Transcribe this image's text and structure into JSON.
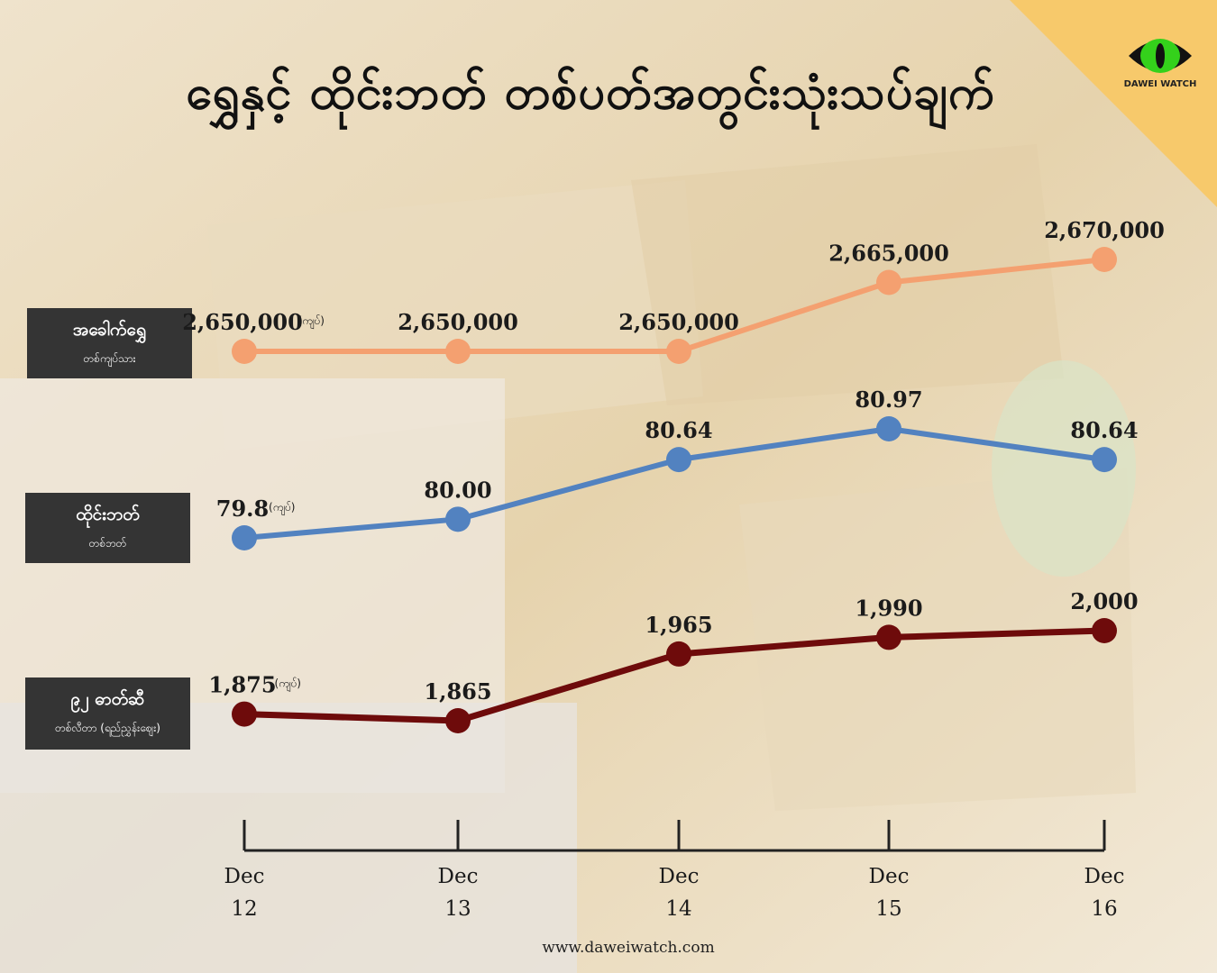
{
  "title": "ရွှေနှင့် ထိုင်းဘတ် တစ်ပတ်အတွင်းသုံးသပ်ချက်",
  "brand": "DAWEI WATCH",
  "website": "www.daweiwatch.com",
  "unit_label": "(ကျပ်)",
  "chart_data": {
    "type": "line",
    "x": [
      "Dec 12",
      "Dec 13",
      "Dec 14",
      "Dec 15",
      "Dec 16"
    ],
    "x_month": [
      "Dec",
      "Dec",
      "Dec",
      "Dec",
      "Dec"
    ],
    "x_day": [
      "12",
      "13",
      "14",
      "15",
      "16"
    ],
    "series": [
      {
        "name": "အခေါက်ရွှေ",
        "subtitle": "တစ်ကျပ်သား",
        "color": "#f4a070",
        "values": [
          2650000,
          2650000,
          2650000,
          2665000,
          2670000
        ],
        "labels": [
          "2,650,000",
          "2,650,000",
          "2,650,000",
          "2,665,000",
          "2,670,000"
        ],
        "ylim": [
          2600000,
          2700000
        ]
      },
      {
        "name": "ထိုင်းဘတ်",
        "subtitle": "တစ်ဘတ်",
        "color": "#5282c0",
        "values": [
          79.8,
          80.0,
          80.64,
          80.97,
          80.64
        ],
        "labels": [
          "79.8",
          "80.00",
          "80.64",
          "80.97",
          "80.64"
        ],
        "ylim": [
          79,
          82
        ]
      },
      {
        "name": "၉၂ ဓာတ်ဆီ",
        "subtitle": "တစ်လီတာ (ရည်ညွှန်းဈေး)",
        "color": "#6e0b0b",
        "values": [
          1875,
          1865,
          1965,
          1990,
          2000
        ],
        "labels": [
          "1,875",
          "1,865",
          "1,965",
          "1,990",
          "2,000"
        ],
        "ylim": [
          1800,
          2100
        ]
      }
    ]
  }
}
